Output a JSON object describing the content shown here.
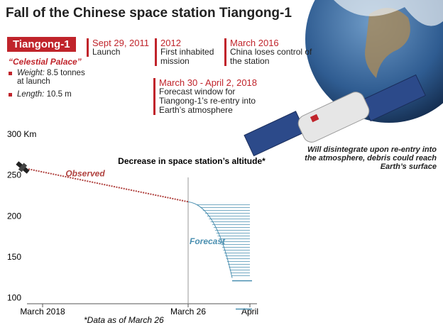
{
  "chart_data": {
    "type": "line",
    "title": "Fall of the Chinese space station Tiangong-1",
    "badge": "Tiangong-1",
    "nickname": "“Celestial Palace”",
    "specs": [
      {
        "label": "Weight:",
        "text": "8.5 tonnes at launch"
      },
      {
        "label": "Length:",
        "text": "10.5 m"
      }
    ],
    "timeline": [
      {
        "date": "Sept 29, 2011",
        "text": "Launch"
      },
      {
        "date": "2012",
        "text": "First inhabited mission"
      },
      {
        "date": "March 2016",
        "text": "China loses control of the station"
      },
      {
        "date": "March 30 - April 2, 2018",
        "text": "Forecast window for Tiangong-1’s re-entry into Earth’s atmosphere"
      }
    ],
    "satellite_note": "Will disintegrate upon re-entry into the atmosphere, debris could reach Earth’s surface",
    "chart_title": "Decrease in space station’s altitude*",
    "footnote": "*Data as of March 26",
    "x": [
      "March 2018",
      "March 26",
      "April"
    ],
    "series": [
      {
        "name": "Observed",
        "color": "#b0413e",
        "values": [
          258,
          218,
          null
        ]
      },
      {
        "name": "Forecast",
        "color": "#4a8fb0",
        "values": [
          null,
          218,
          125
        ],
        "low": [
          null,
          null,
          87
        ]
      }
    ],
    "ylim": [
      90,
      305
    ],
    "yticks": [
      100,
      150,
      200,
      250,
      {
        "value": 300,
        "label": "300 Km"
      }
    ],
    "grid": false
  }
}
